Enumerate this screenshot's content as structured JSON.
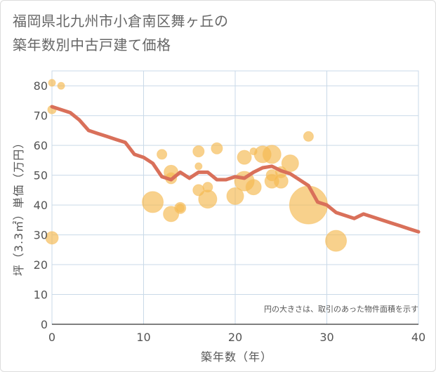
{
  "title": {
    "line1": "福岡県北九州市小倉南区舞ヶ丘の",
    "line2": "築年数別中古戸建て価格"
  },
  "note": "円の大きさは、取引のあった物件面積を示す",
  "colors": {
    "bubble": "#f5b94f",
    "line": "#d9705a",
    "grid": "#c9d9e8",
    "axis": "#555555"
  },
  "chart_data": {
    "type": "scatter",
    "xlabel": "築年数（年）",
    "ylabel": "坪（3.3㎡）単価（万円）",
    "xlim": [
      0,
      40
    ],
    "ylim": [
      0,
      85
    ],
    "xticks": [
      0,
      10,
      20,
      30,
      40
    ],
    "yticks": [
      0,
      10,
      20,
      30,
      40,
      50,
      60,
      70,
      80
    ],
    "bubbles": [
      {
        "x": 0,
        "y": 81,
        "size": 2
      },
      {
        "x": 1,
        "y": 80,
        "size": 2
      },
      {
        "x": 0,
        "y": 72,
        "size": 3
      },
      {
        "x": 0,
        "y": 29,
        "size": 6
      },
      {
        "x": 11,
        "y": 41,
        "size": 12
      },
      {
        "x": 12,
        "y": 57,
        "size": 4
      },
      {
        "x": 13,
        "y": 51,
        "size": 7
      },
      {
        "x": 13,
        "y": 49,
        "size": 5
      },
      {
        "x": 13,
        "y": 37,
        "size": 8
      },
      {
        "x": 14,
        "y": 39,
        "size": 5
      },
      {
        "x": 14,
        "y": 39,
        "size": 3
      },
      {
        "x": 16,
        "y": 58,
        "size": 5
      },
      {
        "x": 16,
        "y": 53,
        "size": 2
      },
      {
        "x": 16,
        "y": 45,
        "size": 5
      },
      {
        "x": 17,
        "y": 46,
        "size": 4
      },
      {
        "x": 17,
        "y": 42,
        "size": 10
      },
      {
        "x": 18,
        "y": 59,
        "size": 5
      },
      {
        "x": 20,
        "y": 43,
        "size": 9
      },
      {
        "x": 21,
        "y": 56,
        "size": 7
      },
      {
        "x": 21,
        "y": 48,
        "size": 11
      },
      {
        "x": 22,
        "y": 58,
        "size": 2
      },
      {
        "x": 22,
        "y": 46,
        "size": 8
      },
      {
        "x": 23,
        "y": 57,
        "size": 9
      },
      {
        "x": 24,
        "y": 57,
        "size": 10
      },
      {
        "x": 24,
        "y": 50,
        "size": 5
      },
      {
        "x": 24,
        "y": 48,
        "size": 7
      },
      {
        "x": 25,
        "y": 51,
        "size": 5
      },
      {
        "x": 25,
        "y": 48,
        "size": 7
      },
      {
        "x": 26,
        "y": 54,
        "size": 9
      },
      {
        "x": 28,
        "y": 63,
        "size": 4
      },
      {
        "x": 28,
        "y": 40,
        "size": 24
      },
      {
        "x": 31,
        "y": 28,
        "size": 12
      }
    ],
    "trend": {
      "x": [
        0,
        1,
        2,
        3,
        4,
        5,
        6,
        7,
        8,
        9,
        10,
        11,
        12,
        13,
        14,
        15,
        16,
        17,
        18,
        19,
        20,
        21,
        22,
        23,
        24,
        25,
        26,
        27,
        28,
        29,
        30,
        31,
        32,
        33,
        34,
        35,
        36,
        37,
        38,
        39,
        40
      ],
      "y": [
        73,
        72,
        71,
        68.5,
        65,
        64,
        63,
        62,
        61,
        57,
        56,
        54,
        49.5,
        48.5,
        51,
        49,
        51,
        51,
        48.5,
        48.5,
        49.5,
        49,
        51,
        52.5,
        53,
        51.5,
        50.5,
        48.5,
        46.5,
        41,
        40,
        37.5,
        36.5,
        35.5,
        37,
        36,
        35,
        34,
        33,
        32,
        31
      ]
    }
  }
}
